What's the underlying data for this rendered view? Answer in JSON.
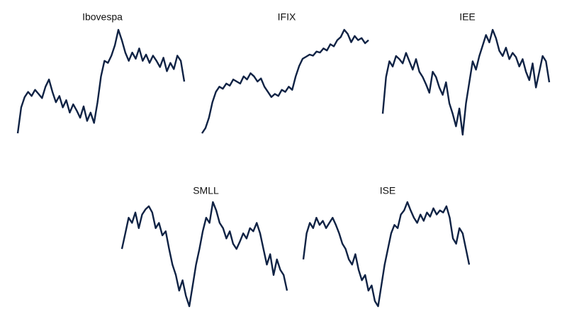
{
  "chart_data": [
    {
      "type": "line",
      "title": "Ibovespa",
      "color": "#0f2244",
      "values": [
        0,
        25,
        35,
        40,
        36,
        42,
        38,
        34,
        45,
        52,
        40,
        30,
        36,
        25,
        32,
        20,
        28,
        22,
        15,
        26,
        12,
        20,
        10,
        30,
        55,
        70,
        68,
        75,
        85,
        100,
        90,
        78,
        70,
        78,
        72,
        82,
        70,
        76,
        68,
        75,
        70,
        64,
        73,
        60,
        68,
        62,
        75,
        70,
        50
      ]
    },
    {
      "type": "line",
      "title": "IFIX",
      "color": "#0f2244",
      "values": [
        0,
        5,
        15,
        30,
        40,
        45,
        43,
        48,
        46,
        52,
        50,
        48,
        55,
        52,
        58,
        55,
        50,
        53,
        45,
        40,
        35,
        38,
        36,
        42,
        40,
        45,
        42,
        55,
        65,
        72,
        74,
        76,
        75,
        79,
        78,
        82,
        80,
        86,
        84,
        90,
        93,
        100,
        96,
        88,
        94,
        90,
        92,
        87,
        90
      ]
    },
    {
      "type": "line",
      "title": "IEE",
      "color": "#0f2244",
      "values": [
        20,
        55,
        70,
        65,
        75,
        72,
        68,
        78,
        70,
        62,
        72,
        60,
        55,
        48,
        40,
        60,
        55,
        45,
        38,
        50,
        30,
        20,
        8,
        25,
        0,
        30,
        50,
        70,
        62,
        75,
        85,
        95,
        88,
        100,
        92,
        80,
        75,
        83,
        72,
        78,
        74,
        65,
        72,
        60,
        52,
        68,
        45,
        60,
        75,
        70,
        50
      ]
    },
    {
      "type": "line",
      "title": "SMLL",
      "color": "#0f2244",
      "values": [
        55,
        70,
        85,
        80,
        90,
        75,
        88,
        93,
        96,
        90,
        75,
        80,
        68,
        72,
        55,
        40,
        30,
        15,
        25,
        10,
        0,
        20,
        40,
        55,
        72,
        85,
        80,
        100,
        92,
        80,
        75,
        65,
        72,
        60,
        55,
        62,
        70,
        65,
        75,
        72,
        80,
        70,
        55,
        40,
        50,
        30,
        45,
        35,
        30,
        15
      ]
    },
    {
      "type": "line",
      "title": "ISE",
      "color": "#0f2244",
      "values": [
        45,
        70,
        80,
        75,
        85,
        78,
        82,
        75,
        80,
        85,
        78,
        70,
        60,
        55,
        45,
        40,
        50,
        35,
        25,
        30,
        15,
        20,
        5,
        0,
        20,
        40,
        55,
        70,
        78,
        75,
        88,
        92,
        100,
        92,
        85,
        80,
        88,
        82,
        90,
        86,
        94,
        88,
        92,
        90,
        96,
        85,
        65,
        60,
        75,
        70,
        55,
        40
      ]
    }
  ]
}
